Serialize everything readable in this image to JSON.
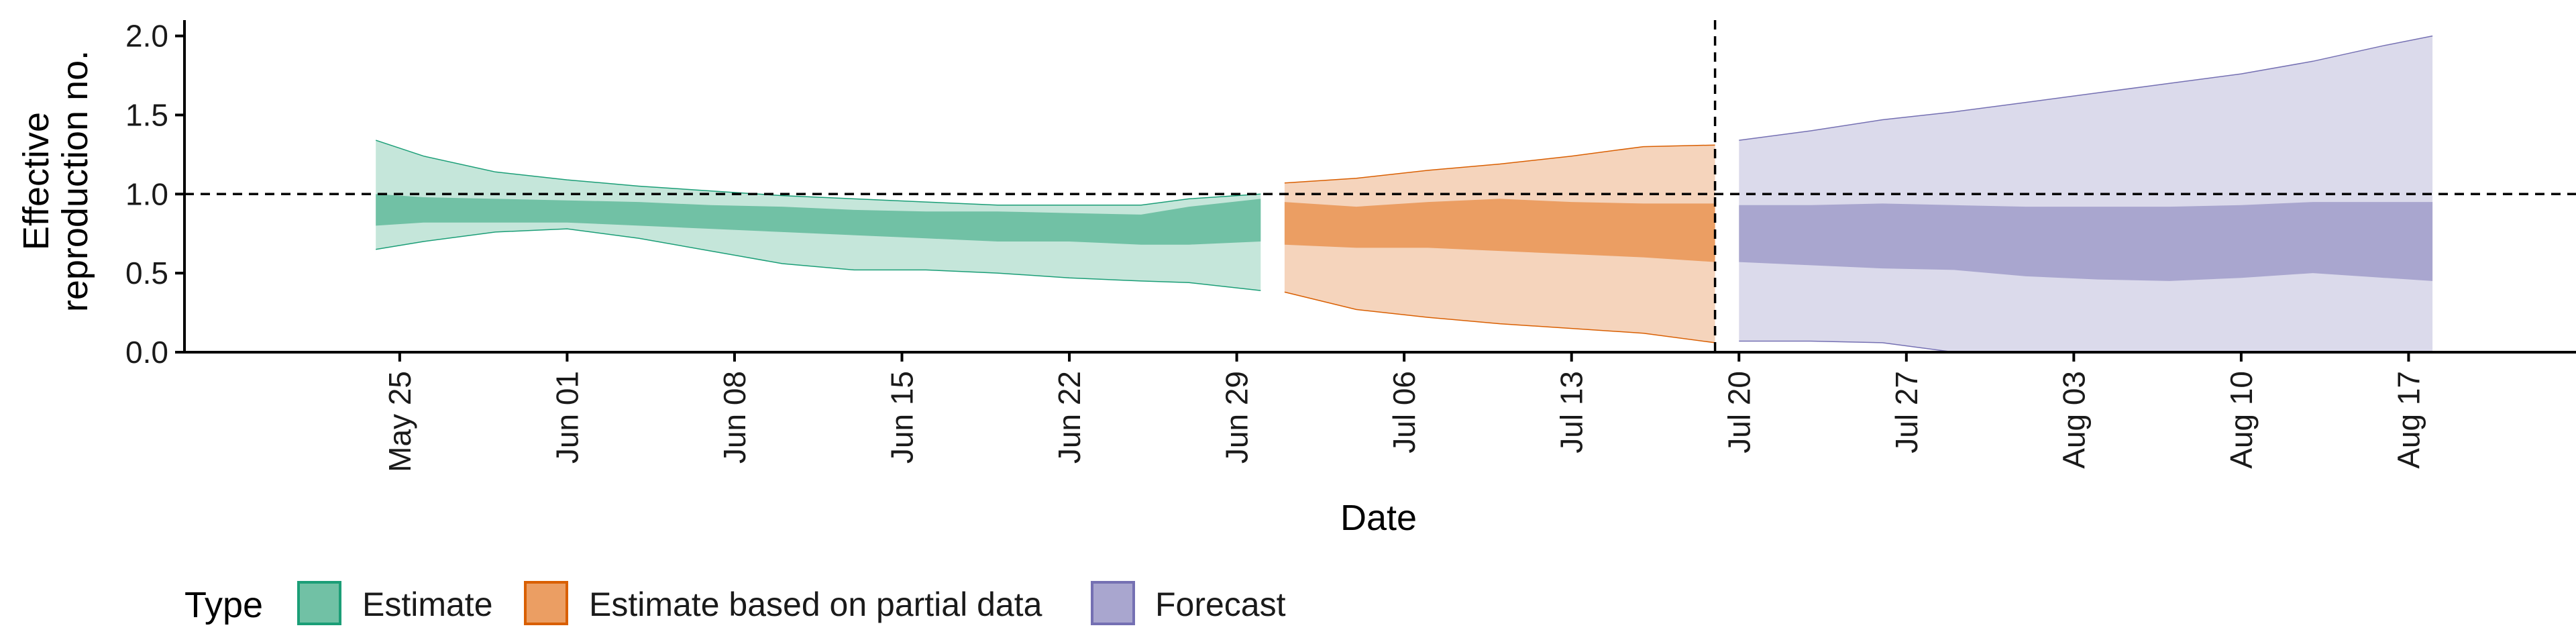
{
  "chart_data": {
    "type": "area",
    "title": "",
    "xlabel": "Date",
    "ylabel": [
      "Effective",
      "reproduction no."
    ],
    "ylim": [
      0,
      2.1
    ],
    "yticks": [
      0.0,
      0.5,
      1.0,
      1.5,
      2.0
    ],
    "ytick_labels": [
      "0.0",
      "0.5",
      "1.0",
      "1.5",
      "2.0"
    ],
    "xlim": [
      "2020-05-16",
      "2020-08-24"
    ],
    "xticks": [
      "2020-05-25",
      "2020-06-01",
      "2020-06-08",
      "2020-06-15",
      "2020-06-22",
      "2020-06-29",
      "2020-07-06",
      "2020-07-13",
      "2020-07-20",
      "2020-07-27",
      "2020-08-03",
      "2020-08-10",
      "2020-08-17"
    ],
    "xtick_labels": [
      "May 25",
      "Jun 01",
      "Jun 08",
      "Jun 15",
      "Jun 22",
      "Jun 29",
      "Jul 06",
      "Jul 13",
      "Jul 20",
      "Jul 27",
      "Aug 03",
      "Aug 10",
      "Aug 17"
    ],
    "reference_line_y": 1.0,
    "reference_line_x": "2020-07-19",
    "grid": false,
    "legend": {
      "title": "Type",
      "position": "bottom-left",
      "entries": [
        {
          "label": "Estimate",
          "fill": "#71c1a5",
          "stroke": "#1b9e77"
        },
        {
          "label": "Estimate based on partial data",
          "fill": "#eb9e63",
          "stroke": "#d95f02"
        },
        {
          "label": "Forecast",
          "fill": "#a9a6cf",
          "stroke": "#7570b3"
        }
      ]
    },
    "series": [
      {
        "name": "Estimate",
        "outer_color": "#c5e6da",
        "inner_color": "#71c1a5",
        "line_color": "#1b9e77",
        "x": [
          "2020-05-24",
          "2020-05-26",
          "2020-05-29",
          "2020-06-01",
          "2020-06-04",
          "2020-06-07",
          "2020-06-10",
          "2020-06-13",
          "2020-06-16",
          "2020-06-19",
          "2020-06-22",
          "2020-06-25",
          "2020-06-27",
          "2020-06-30"
        ],
        "outer_low": [
          0.65,
          0.7,
          0.76,
          0.78,
          0.72,
          0.64,
          0.56,
          0.52,
          0.52,
          0.5,
          0.47,
          0.45,
          0.44,
          0.39
        ],
        "inner_low": [
          0.8,
          0.82,
          0.82,
          0.82,
          0.8,
          0.78,
          0.76,
          0.74,
          0.72,
          0.7,
          0.7,
          0.68,
          0.68,
          0.7
        ],
        "inner_high": [
          1.0,
          0.98,
          0.97,
          0.96,
          0.95,
          0.93,
          0.92,
          0.9,
          0.89,
          0.89,
          0.88,
          0.87,
          0.92,
          0.97
        ],
        "outer_high": [
          1.34,
          1.24,
          1.14,
          1.09,
          1.05,
          1.02,
          0.99,
          0.97,
          0.95,
          0.93,
          0.93,
          0.93,
          0.97,
          1.0
        ]
      },
      {
        "name": "Estimate based on partial data",
        "outer_color": "#f5d4bc",
        "inner_color": "#eb9e63",
        "line_color": "#d95f02",
        "x": [
          "2020-07-01",
          "2020-07-04",
          "2020-07-07",
          "2020-07-10",
          "2020-07-13",
          "2020-07-16",
          "2020-07-19"
        ],
        "outer_low": [
          0.38,
          0.27,
          0.22,
          0.18,
          0.15,
          0.12,
          0.06
        ],
        "inner_low": [
          0.68,
          0.66,
          0.66,
          0.64,
          0.62,
          0.6,
          0.57
        ],
        "inner_high": [
          0.95,
          0.92,
          0.95,
          0.97,
          0.95,
          0.94,
          0.94
        ],
        "outer_high": [
          1.07,
          1.1,
          1.15,
          1.19,
          1.24,
          1.3,
          1.31
        ]
      },
      {
        "name": "Forecast",
        "outer_color": "#dbdaeb",
        "inner_color": "#a9a6cf",
        "line_color": "#7570b3",
        "x": [
          "2020-07-20",
          "2020-07-23",
          "2020-07-26",
          "2020-07-29",
          "2020-08-01",
          "2020-08-04",
          "2020-08-07",
          "2020-08-10",
          "2020-08-13",
          "2020-08-16",
          "2020-08-18"
        ],
        "outer_low": [
          0.07,
          0.07,
          0.06,
          0.0,
          0.0,
          0.0,
          0.0,
          0.0,
          0.0,
          0.0,
          0.0
        ],
        "inner_low": [
          0.57,
          0.55,
          0.53,
          0.52,
          0.48,
          0.46,
          0.45,
          0.47,
          0.5,
          0.47,
          0.45
        ],
        "inner_high": [
          0.93,
          0.93,
          0.94,
          0.93,
          0.92,
          0.92,
          0.92,
          0.93,
          0.95,
          0.95,
          0.95
        ],
        "outer_high": [
          1.34,
          1.4,
          1.47,
          1.52,
          1.58,
          1.64,
          1.7,
          1.76,
          1.84,
          1.94,
          2.0
        ]
      }
    ]
  }
}
